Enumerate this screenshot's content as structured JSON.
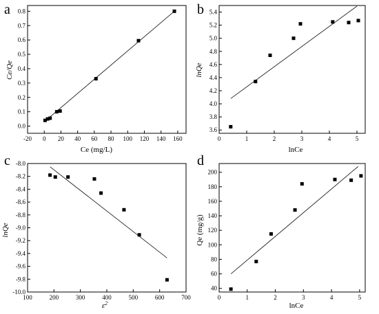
{
  "chart_data": [
    {
      "type": "scatter",
      "panel_label": "a",
      "xlabel": "Ce (mg/L)",
      "ylabel": "Ce/Qe",
      "xlim": [
        -20,
        170
      ],
      "ylim": [
        -0.05,
        0.84
      ],
      "xticks": [
        -20,
        0,
        20,
        40,
        60,
        80,
        100,
        120,
        140,
        160
      ],
      "yticks": [
        0.0,
        0.1,
        0.2,
        0.3,
        0.4,
        0.5,
        0.6,
        0.7,
        0.8
      ],
      "points": [
        [
          1,
          0.04
        ],
        [
          4,
          0.05
        ],
        [
          7,
          0.055
        ],
        [
          15,
          0.1
        ],
        [
          19,
          0.105
        ],
        [
          62,
          0.33
        ],
        [
          113,
          0.595
        ],
        [
          156,
          0.8
        ]
      ],
      "fit_line": [
        [
          1,
          0.035
        ],
        [
          157,
          0.805
        ]
      ],
      "grid": false
    },
    {
      "type": "scatter",
      "panel_label": "b",
      "xlabel": "lnCe",
      "ylabel": "lnQe",
      "xlim": [
        0,
        5.3
      ],
      "ylim": [
        3.55,
        5.5
      ],
      "xticks": [
        0,
        1,
        2,
        3,
        4,
        5
      ],
      "yticks": [
        3.6,
        3.8,
        4.0,
        4.2,
        4.4,
        4.6,
        4.8,
        5.0,
        5.2,
        5.4
      ],
      "points": [
        [
          0.42,
          3.65
        ],
        [
          1.32,
          4.34
        ],
        [
          1.85,
          4.74
        ],
        [
          2.7,
          5.0
        ],
        [
          2.95,
          5.22
        ],
        [
          4.12,
          5.25
        ],
        [
          4.7,
          5.24
        ],
        [
          5.05,
          5.27
        ]
      ],
      "fit_line": [
        [
          0.42,
          4.08
        ],
        [
          5.0,
          5.49
        ]
      ],
      "grid": false
    },
    {
      "type": "scatter",
      "panel_label": "c",
      "xlabel": "ε2",
      "ylabel": "lnQe",
      "xlim": [
        100,
        700
      ],
      "ylim": [
        -10.0,
        -8.0
      ],
      "xticks": [
        100,
        200,
        300,
        400,
        500,
        600,
        700
      ],
      "yticks": [
        -8.0,
        -8.2,
        -8.4,
        -8.6,
        -8.8,
        -9.0,
        -9.2,
        -9.4,
        -9.6,
        -9.8,
        -10.0
      ],
      "points": [
        [
          185,
          -8.18
        ],
        [
          205,
          -8.21
        ],
        [
          253,
          -8.21
        ],
        [
          353,
          -8.24
        ],
        [
          378,
          -8.46
        ],
        [
          465,
          -8.72
        ],
        [
          523,
          -9.11
        ],
        [
          628,
          -9.81
        ]
      ],
      "fit_line": [
        [
          185,
          -8.05
        ],
        [
          628,
          -9.47
        ]
      ],
      "grid": false
    },
    {
      "type": "scatter",
      "panel_label": "d",
      "xlabel": "lnCe",
      "ylabel": "Qe (mg/g)",
      "xlim": [
        0,
        5.2
      ],
      "ylim": [
        35,
        212
      ],
      "xticks": [
        0,
        1,
        2,
        3,
        4,
        5
      ],
      "yticks": [
        40,
        60,
        80,
        100,
        120,
        140,
        160,
        180,
        200
      ],
      "points": [
        [
          0.42,
          39
        ],
        [
          1.32,
          77
        ],
        [
          1.85,
          115
        ],
        [
          2.7,
          148
        ],
        [
          2.95,
          184
        ],
        [
          4.12,
          190
        ],
        [
          4.7,
          189
        ],
        [
          5.05,
          195
        ]
      ],
      "fit_line": [
        [
          0.42,
          60
        ],
        [
          4.95,
          208
        ]
      ],
      "grid": false
    }
  ]
}
